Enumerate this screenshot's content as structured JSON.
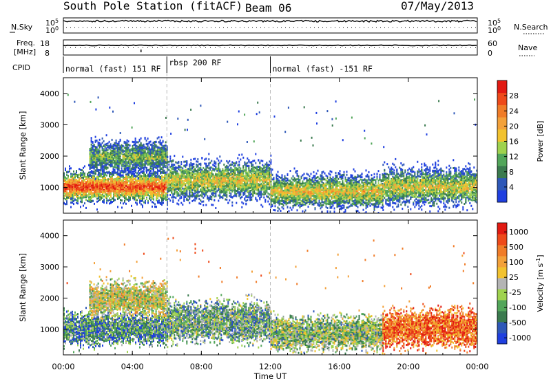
{
  "header": {
    "station": "South Pole Station (fitACF)",
    "beam": "Beam 06",
    "date": "07/May/2013"
  },
  "status_panels": {
    "nsky_label": "N.Sky",
    "nsearch_label": "N.Search",
    "freq_label_line1": "Freq.",
    "freq_label_line2": "[MHz]",
    "nave_label": "Nave",
    "cpid_label": "CPID",
    "noise_ticks_left": [
      "10^5",
      "10^0"
    ],
    "noise_ticks_right": [
      "10^5",
      "10^0"
    ],
    "freq_ticks": [
      "18",
      "8"
    ],
    "nave_ticks": [
      "60",
      "0"
    ],
    "cpid_segments": [
      {
        "label": "normal (fast) 151 RF",
        "start_hour": 0,
        "end_hour": 6
      },
      {
        "label": "rbsp 200 RF",
        "start_hour": 6,
        "end_hour": 12
      },
      {
        "label": "normal (fast) -151 RF",
        "start_hour": 12,
        "end_hour": 24
      }
    ]
  },
  "chart_data": [
    {
      "type": "heatmap",
      "panel": "power",
      "ylabel": "Slant Range [km]",
      "xlabel": "Time UT",
      "xlim": [
        0,
        24
      ],
      "ylim": [
        180,
        4500
      ],
      "xticks": [
        "00:00",
        "04:00",
        "08:00",
        "12:00",
        "16:00",
        "20:00",
        "00:00"
      ],
      "yticks": [
        "1000",
        "2000",
        "3000",
        "4000"
      ],
      "colorbar": {
        "label": "Power [dB]",
        "ticks": [
          "4",
          "8",
          "12",
          "16",
          "20",
          "24",
          "28"
        ],
        "colors": [
          "#1f3fe0",
          "#2e58b8",
          "#3a7a4e",
          "#52a65a",
          "#9fd24e",
          "#f2c22e",
          "#f3a13a",
          "#f07c28",
          "#ee4a1a",
          "#e21a12"
        ]
      },
      "scatter_bands": [
        {
          "start_hour": 0.0,
          "end_hour": 6.0,
          "center_km": 1050,
          "spread_km": 400,
          "intensity": 0.9
        },
        {
          "start_hour": 1.5,
          "end_hour": 6.0,
          "center_km": 2000,
          "spread_km": 400,
          "intensity": 0.4
        },
        {
          "start_hour": 6.0,
          "end_hour": 12.0,
          "center_km": 1250,
          "spread_km": 500,
          "intensity": 0.55
        },
        {
          "start_hour": 12.0,
          "end_hour": 18.5,
          "center_km": 900,
          "spread_km": 420,
          "intensity": 0.6
        },
        {
          "start_hour": 18.5,
          "end_hour": 24.0,
          "center_km": 1050,
          "spread_km": 480,
          "intensity": 0.55
        }
      ],
      "event_lines_hours": [
        6,
        12
      ]
    },
    {
      "type": "heatmap",
      "panel": "velocity",
      "ylabel": "Slant Range [km]",
      "xlabel": "Time UT",
      "xlim": [
        0,
        24
      ],
      "ylim": [
        180,
        4500
      ],
      "xticks": [
        "00:00",
        "04:00",
        "08:00",
        "12:00",
        "16:00",
        "20:00",
        "00:00"
      ],
      "yticks": [
        "1000",
        "2000",
        "3000",
        "4000"
      ],
      "colorbar": {
        "label": "Velocity [m s^-1]",
        "ticks": [
          "1000",
          "500",
          "100",
          "25",
          "-25",
          "-100",
          "-500",
          "-1000"
        ],
        "colors": [
          "#1f3fe0",
          "#2e58b8",
          "#3a7a4e",
          "#52a65a",
          "#9fd24e",
          "#b4b4b4",
          "#f2c22e",
          "#f3a13a",
          "#f07c28",
          "#ee4a1a",
          "#e21a12"
        ]
      },
      "scatter_bands": [
        {
          "start_hour": 0.0,
          "end_hour": 6.0,
          "center_km": 1050,
          "spread_km": 400,
          "velocity_bias": 0.45
        },
        {
          "start_hour": 1.5,
          "end_hour": 6.0,
          "center_km": 2000,
          "spread_km": 400,
          "velocity_bias": 0.0
        },
        {
          "start_hour": 6.0,
          "end_hour": 12.0,
          "center_km": 1250,
          "spread_km": 500,
          "velocity_bias": 0.35
        },
        {
          "start_hour": 12.0,
          "end_hour": 18.5,
          "center_km": 900,
          "spread_km": 420,
          "velocity_bias": 0.2
        },
        {
          "start_hour": 18.5,
          "end_hour": 24.0,
          "center_km": 1050,
          "spread_km": 480,
          "velocity_bias": -0.6
        }
      ],
      "event_lines_hours": [
        6,
        12
      ]
    }
  ]
}
